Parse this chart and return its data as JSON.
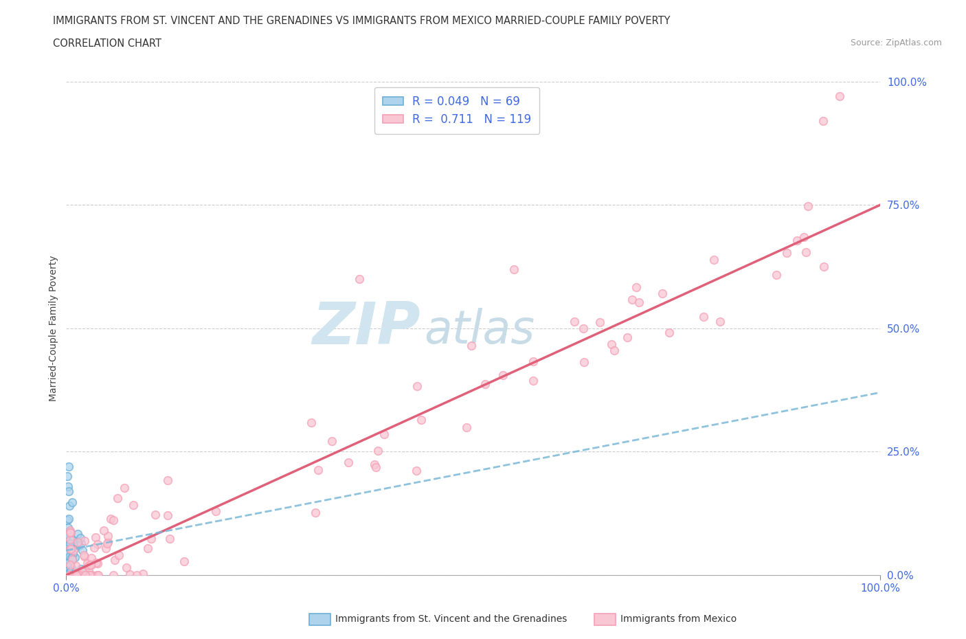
{
  "title_line1": "IMMIGRANTS FROM ST. VINCENT AND THE GRENADINES VS IMMIGRANTS FROM MEXICO MARRIED-COUPLE FAMILY POVERTY",
  "title_line2": "CORRELATION CHART",
  "source_text": "Source: ZipAtlas.com",
  "ylabel": "Married-Couple Family Poverty",
  "xmin": 0.0,
  "xmax": 1.0,
  "ymin": 0.0,
  "ymax": 1.0,
  "ytick_positions": [
    0.0,
    0.25,
    0.5,
    0.75,
    1.0
  ],
  "r_vincent": 0.049,
  "n_vincent": 69,
  "r_mexico": 0.711,
  "n_mexico": 119,
  "color_vincent": "#6baed6",
  "color_mexico": "#f4a0b5",
  "color_vincent_fill": "#aed4ed",
  "color_mexico_fill": "#f9c6d4",
  "color_mexico_line": "#e0607a",
  "color_vincent_line": "#7ab8d8",
  "watermark_color": "#d0e5f0",
  "watermark_color2": "#c8dce8",
  "legend_color": "#4169e1",
  "axis_label_color": "#4169e1",
  "background_color": "#ffffff",
  "grid_color": "#cccccc",
  "title_color": "#333333",
  "source_color": "#999999",
  "ylabel_color": "#444444",
  "mexico_line_intercept": 0.0,
  "mexico_line_slope": 0.75,
  "vincent_line_intercept": 0.05,
  "vincent_line_slope": 0.32
}
